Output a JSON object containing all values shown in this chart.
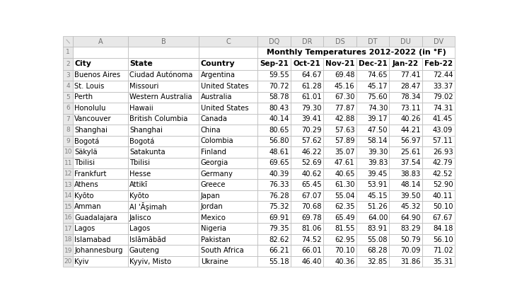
{
  "title": "Monthly Temperatures 2012-2022 (in °F)",
  "col_letters": [
    "A",
    "B",
    "C",
    "DQ",
    "DR",
    "DS",
    "DT",
    "DU",
    "DV"
  ],
  "col_headers": [
    "City",
    "State",
    "Country",
    "Sep-21",
    "Oct-21",
    "Nov-21",
    "Dec-21",
    "Jan-22",
    "Feb-22"
  ],
  "rows": [
    [
      "Buenos Aires",
      "Ciudad Autónoma",
      "Argentina",
      59.55,
      64.67,
      69.48,
      74.65,
      77.41,
      72.44
    ],
    [
      "St. Louis",
      "Missouri",
      "United States",
      70.72,
      61.28,
      45.16,
      45.17,
      28.47,
      33.37
    ],
    [
      "Perth",
      "Western Australia",
      "Australia",
      58.78,
      61.01,
      67.3,
      75.6,
      78.34,
      79.02
    ],
    [
      "Honolulu",
      "Hawaii",
      "United States",
      80.43,
      79.3,
      77.87,
      74.3,
      73.11,
      74.31
    ],
    [
      "Vancouver",
      "British Columbia",
      "Canada",
      40.14,
      39.41,
      42.88,
      39.17,
      40.26,
      41.45
    ],
    [
      "Shanghai",
      "Shanghai",
      "China",
      80.65,
      70.29,
      57.63,
      47.5,
      44.21,
      43.09
    ],
    [
      "Bogotá",
      "Bogotá",
      "Colombia",
      56.8,
      57.62,
      57.89,
      58.14,
      56.97,
      57.11
    ],
    [
      "Säkylä",
      "Satakunta",
      "Finland",
      48.61,
      46.22,
      35.07,
      39.3,
      25.61,
      26.93
    ],
    [
      "Tbilisi",
      "Tbilisi",
      "Georgia",
      69.65,
      52.69,
      47.61,
      39.83,
      37.54,
      42.79
    ],
    [
      "Frankfurt",
      "Hesse",
      "Germany",
      40.39,
      40.62,
      40.65,
      39.45,
      38.83,
      42.52
    ],
    [
      "Athens",
      "Attikī",
      "Greece",
      76.33,
      65.45,
      61.3,
      53.91,
      48.14,
      52.9
    ],
    [
      "Kyōto",
      "Kyōto",
      "Japan",
      76.28,
      67.07,
      55.04,
      45.15,
      39.5,
      40.11
    ],
    [
      "Amman",
      "Al 'Āşimah",
      "Jordan",
      75.32,
      70.68,
      62.35,
      51.26,
      45.32,
      50.1
    ],
    [
      "Guadalajara",
      "Jalisco",
      "Mexico",
      69.91,
      69.78,
      65.49,
      64.0,
      64.9,
      67.67
    ],
    [
      "Lagos",
      "Lagos",
      "Nigeria",
      79.35,
      81.06,
      81.55,
      83.91,
      83.29,
      84.18
    ],
    [
      "Islamabad",
      "Islāmābād",
      "Pakistan",
      82.62,
      74.52,
      62.95,
      55.08,
      50.79,
      56.1
    ],
    [
      "Johannesburg",
      "Gauteng",
      "South Africa",
      66.21,
      66.01,
      70.1,
      68.28,
      70.09,
      71.02
    ],
    [
      "Kyiv",
      "Kyyiv, Misto",
      "Ukraine",
      55.18,
      46.4,
      40.36,
      32.85,
      31.86,
      35.31
    ]
  ],
  "row_numbers": [
    3,
    4,
    5,
    6,
    7,
    8,
    9,
    10,
    11,
    12,
    13,
    14,
    15,
    16,
    17,
    18,
    19,
    20
  ],
  "grid_color": "#b8b8b8",
  "header_gray": "#e8e8e8",
  "white": "#ffffff",
  "text_dark": "#000000",
  "text_gray": "#808080",
  "col_letter_color": "#707070"
}
